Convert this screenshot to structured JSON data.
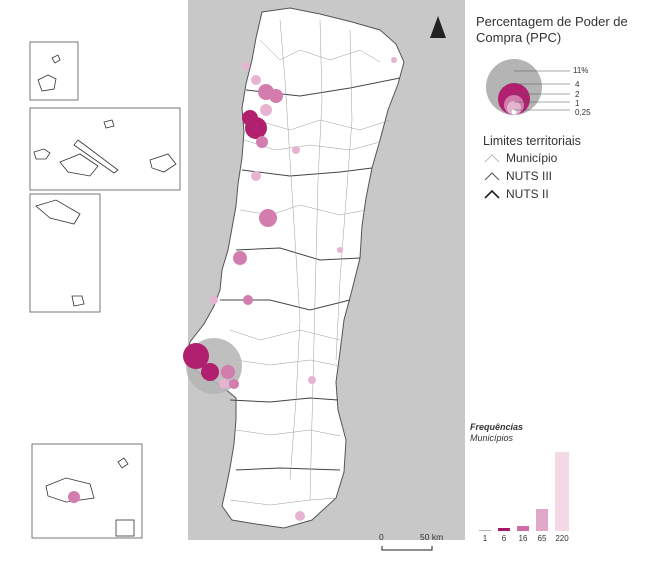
{
  "legend": {
    "title": "Percentagem de Poder de Compra (PPC)",
    "bubble_labels": [
      "11%",
      "4",
      "2",
      "1",
      "0,25"
    ],
    "limits_title": "Limites territoriais",
    "limits": [
      "Município",
      "NUTS III",
      "NUTS II"
    ]
  },
  "frequencies": {
    "title": "Frequências",
    "subtitle": "Municípios",
    "labels": [
      "1",
      "6",
      "16",
      "65",
      "220"
    ],
    "values": [
      1,
      6,
      16,
      65,
      220
    ],
    "colors": [
      "#b4b4b4",
      "#a31a66",
      "#cd6ea6",
      "#e0a9c9",
      "#f3d8e6"
    ]
  },
  "scale": {
    "zero": "0",
    "distance": "50 km"
  },
  "colors": {
    "sea": "#c8c8c8",
    "land": "#ffffff",
    "ppc_dark": "#b0206f",
    "ppc_mid": "#d27dad",
    "ppc_light": "#e6b4d0",
    "ppc_max": "#b4b4b4"
  }
}
